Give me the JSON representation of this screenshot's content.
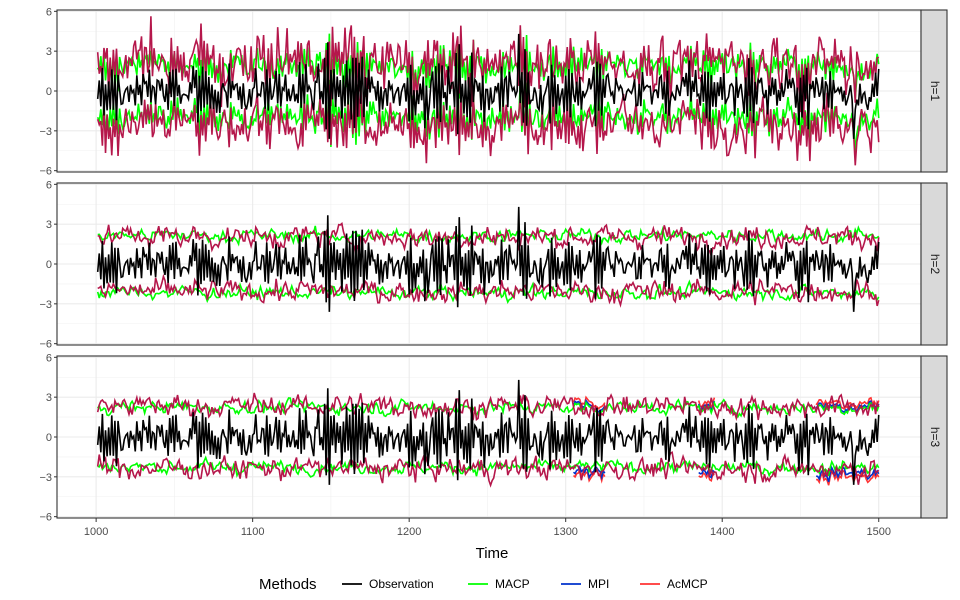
{
  "chart_data": {
    "type": "line",
    "xlabel": "Time",
    "ylabel": "",
    "xlim": [
      975,
      1527
    ],
    "ylim": [
      -6.1,
      6.1
    ],
    "x_ticks": [
      1000,
      1100,
      1200,
      1300,
      1400,
      1500
    ],
    "x_tick_labels": [
      "1000",
      "1100",
      "1200",
      "1300",
      "1400",
      "1500"
    ],
    "y_ticks": [
      -6,
      -3,
      0,
      3,
      6
    ],
    "y_tick_labels": [
      "−6",
      "−3",
      "0",
      "3",
      "6"
    ],
    "series_range": [
      1001,
      1500
    ],
    "legend": {
      "title": "Methods",
      "position": "bottom",
      "entries": [
        {
          "label": "Observation",
          "color": "#000000"
        },
        {
          "label": "MACP",
          "color": "#00ff00"
        },
        {
          "label": "MPI",
          "color": "#0033cc"
        },
        {
          "label": "AcMCP",
          "color": "#ff3333"
        }
      ]
    },
    "band_color": "#b5174b",
    "panels": [
      {
        "strip": "h=1",
        "macp_half_width": 1.9,
        "band_base": 1.7,
        "band_noise": 1.9,
        "band_lag1": true
      },
      {
        "strip": "h=2",
        "macp_half_width": 2.15,
        "band_base": 2.05,
        "band_noise": 0.55,
        "band_lag1": false
      },
      {
        "strip": "h=3",
        "macp_half_width": 2.25,
        "band_base": 2.35,
        "band_noise": 0.65,
        "band_lag1": false,
        "highlights": [
          [
            1305,
            1325
          ],
          [
            1385,
            1395
          ],
          [
            1460,
            1500
          ]
        ]
      }
    ]
  }
}
